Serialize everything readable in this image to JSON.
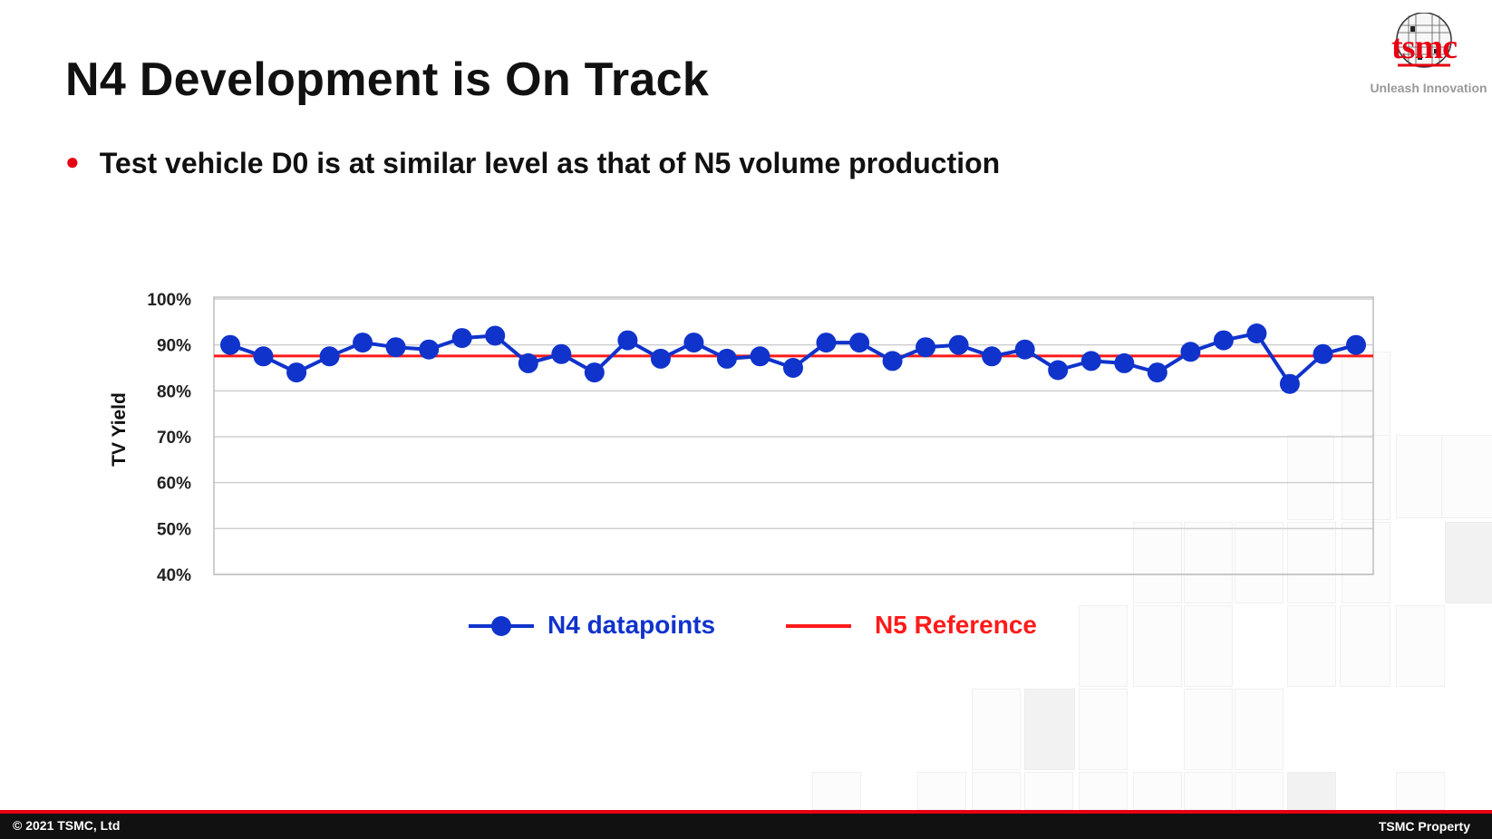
{
  "slide": {
    "title": "N4 Development is On Track",
    "bullet": "Test vehicle D0 is at similar level as that of N5 volume production"
  },
  "logo": {
    "wordmark": "tsmc",
    "tagline": "Unleash Innovation"
  },
  "footer": {
    "copyright": "© 2021 TSMC, Ltd",
    "property": "TSMC Property"
  },
  "colors": {
    "accent_red": "#e60012",
    "series_blue": "#1033cc",
    "reference_red": "#ff1a1a"
  },
  "chart_data": {
    "type": "line",
    "ylabel": "TV Yield",
    "xlabel": "",
    "ylim": [
      40,
      100
    ],
    "yticks": [
      "100%",
      "90%",
      "80%",
      "70%",
      "60%",
      "50%",
      "40%"
    ],
    "grid": true,
    "legend_placement": "bottom",
    "series": [
      {
        "name": "N4 datapoints",
        "color": "#1033cc",
        "marker": "circle",
        "values": [
          90.0,
          87.5,
          84.0,
          87.5,
          90.5,
          89.5,
          89.0,
          91.5,
          92.0,
          86.0,
          88.0,
          84.0,
          91.0,
          87.0,
          90.5,
          87.0,
          87.5,
          85.0,
          90.5,
          90.5,
          86.5,
          89.5,
          90.0,
          87.5,
          89.0,
          84.5,
          86.5,
          86.0,
          84.0,
          88.5,
          91.0,
          92.5,
          81.5,
          88.0,
          90.0
        ]
      },
      {
        "name": "N5 Reference",
        "color": "#ff1a1a",
        "reference_value": 87.6
      }
    ]
  }
}
